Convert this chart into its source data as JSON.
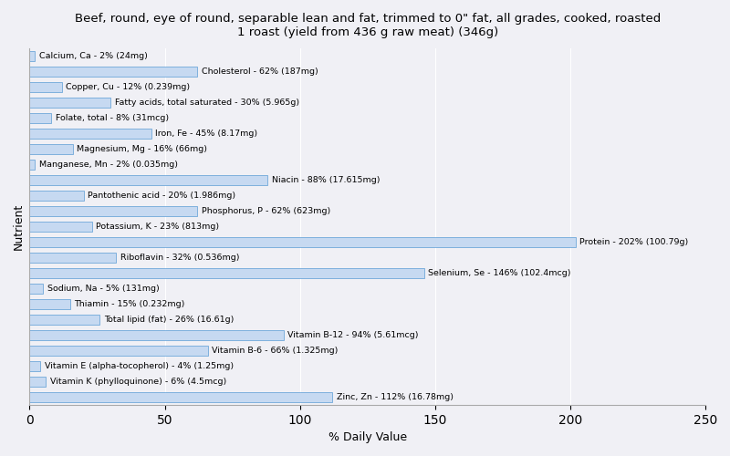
{
  "title": "Beef, round, eye of round, separable lean and fat, trimmed to 0\" fat, all grades, cooked, roasted\n1 roast (yield from 436 g raw meat) (346g)",
  "xlabel": "% Daily Value",
  "ylabel": "Nutrient",
  "xlim": [
    0,
    250
  ],
  "xticks": [
    0,
    50,
    100,
    150,
    200,
    250
  ],
  "background_color": "#f0f0f5",
  "bar_color": "#c6d9f1",
  "bar_edge_color": "#5a9bd5",
  "nutrients": [
    {
      "label": "Calcium, Ca - 2% (24mg)",
      "value": 2
    },
    {
      "label": "Cholesterol - 62% (187mg)",
      "value": 62
    },
    {
      "label": "Copper, Cu - 12% (0.239mg)",
      "value": 12
    },
    {
      "label": "Fatty acids, total saturated - 30% (5.965g)",
      "value": 30
    },
    {
      "label": "Folate, total - 8% (31mcg)",
      "value": 8
    },
    {
      "label": "Iron, Fe - 45% (8.17mg)",
      "value": 45
    },
    {
      "label": "Magnesium, Mg - 16% (66mg)",
      "value": 16
    },
    {
      "label": "Manganese, Mn - 2% (0.035mg)",
      "value": 2
    },
    {
      "label": "Niacin - 88% (17.615mg)",
      "value": 88
    },
    {
      "label": "Pantothenic acid - 20% (1.986mg)",
      "value": 20
    },
    {
      "label": "Phosphorus, P - 62% (623mg)",
      "value": 62
    },
    {
      "label": "Potassium, K - 23% (813mg)",
      "value": 23
    },
    {
      "label": "Protein - 202% (100.79g)",
      "value": 202
    },
    {
      "label": "Riboflavin - 32% (0.536mg)",
      "value": 32
    },
    {
      "label": "Selenium, Se - 146% (102.4mcg)",
      "value": 146
    },
    {
      "label": "Sodium, Na - 5% (131mg)",
      "value": 5
    },
    {
      "label": "Thiamin - 15% (0.232mg)",
      "value": 15
    },
    {
      "label": "Total lipid (fat) - 26% (16.61g)",
      "value": 26
    },
    {
      "label": "Vitamin B-12 - 94% (5.61mcg)",
      "value": 94
    },
    {
      "label": "Vitamin B-6 - 66% (1.325mg)",
      "value": 66
    },
    {
      "label": "Vitamin E (alpha-tocopherol) - 4% (1.25mg)",
      "value": 4
    },
    {
      "label": "Vitamin K (phylloquinone) - 6% (4.5mcg)",
      "value": 6
    },
    {
      "label": "Zinc, Zn - 112% (16.78mg)",
      "value": 112
    }
  ]
}
